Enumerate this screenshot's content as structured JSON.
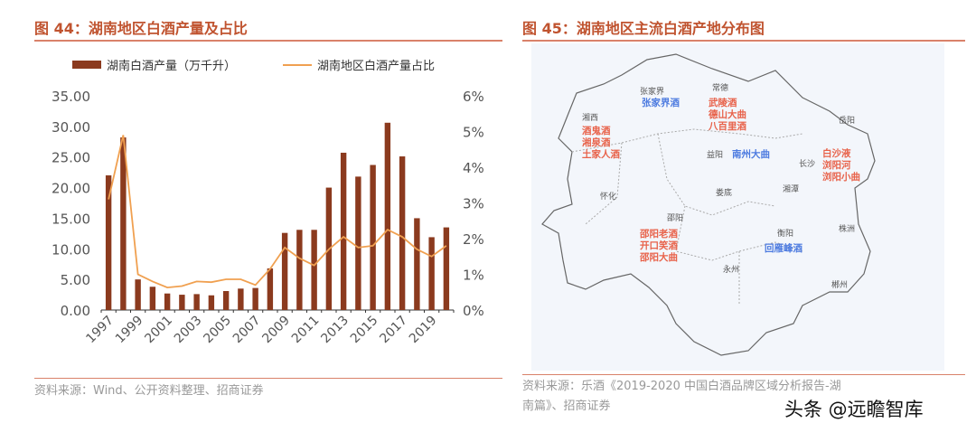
{
  "left": {
    "title": "图 44：湖南地区白酒产量及占比",
    "source": "资料来源：Wind、公开资料整理、招商证券"
  },
  "right": {
    "title": "图 45：湖南地区主流白酒产地分布图",
    "source_line1": "资料来源：乐酒《2019-2020 中国白酒品牌区域分析报告-湖",
    "source_line2": "南篇》、招商证券",
    "cities": [
      "张家界",
      "常德",
      "湘西",
      "岳阳",
      "益阳",
      "长沙",
      "怀化",
      "娄底",
      "湘潭",
      "邵阳",
      "株洲",
      "衡阳",
      "永州",
      "郴州"
    ],
    "brands_red": [
      "武陵酒\n德山大曲\n八百里酒",
      "酒鬼酒\n湘泉酒\n土家人酒",
      "白沙液\n浏阳河\n浏阳小曲",
      "邵阳老酒\n开口笑酒\n邵阳大曲"
    ],
    "brands_blue": [
      "张家界酒",
      "南州大曲",
      "回雁峰酒"
    ],
    "colors": {
      "red": "#e8624a",
      "blue": "#4d7be0"
    }
  },
  "watermark": "头条 @远瞻智库",
  "chart_data": {
    "type": "bar+line",
    "categories": [
      "1997",
      "1998",
      "1999",
      "2000",
      "2001",
      "2002",
      "2003",
      "2004",
      "2005",
      "2006",
      "2007",
      "2008",
      "2009",
      "2010",
      "2011",
      "2012",
      "2013",
      "2014",
      "2015",
      "2016",
      "2017",
      "2018",
      "2019",
      "2020"
    ],
    "x_tick_labels": [
      "1997",
      "1999",
      "2001",
      "2003",
      "2005",
      "2007",
      "2009",
      "2011",
      "2013",
      "2015",
      "2017",
      "2019"
    ],
    "series": [
      {
        "name": "湖南白酒产量（万千升）",
        "type": "bar",
        "axis": "left",
        "color": "#8b3a1e",
        "values": [
          22,
          28.2,
          5,
          3.8,
          2.7,
          2.5,
          2.6,
          2.4,
          3.1,
          3.5,
          3.6,
          6.8,
          12.6,
          13.1,
          13.1,
          20,
          25.7,
          21.8,
          23.7,
          30.6,
          25.1,
          15,
          11.9,
          13.5
        ]
      },
      {
        "name": "湖南地区白酒产量占比",
        "type": "line",
        "axis": "right",
        "color": "#f0a050",
        "values": [
          3.1,
          4.9,
          1.0,
          0.8,
          0.63,
          0.67,
          0.8,
          0.78,
          0.86,
          0.86,
          0.7,
          1.15,
          1.75,
          1.45,
          1.25,
          1.7,
          2.05,
          1.75,
          1.8,
          2.25,
          2.05,
          1.7,
          1.5,
          1.8
        ]
      }
    ],
    "y_left": {
      "range": [
        0,
        35
      ],
      "ticks": [
        "0.00",
        "5.00",
        "10.00",
        "15.00",
        "20.00",
        "25.00",
        "30.00",
        "35.00"
      ]
    },
    "y_right": {
      "range": [
        0,
        6
      ],
      "ticks": [
        "0%",
        "1%",
        "2%",
        "3%",
        "4%",
        "5%",
        "6%"
      ]
    },
    "legend": "top",
    "grid": false
  }
}
